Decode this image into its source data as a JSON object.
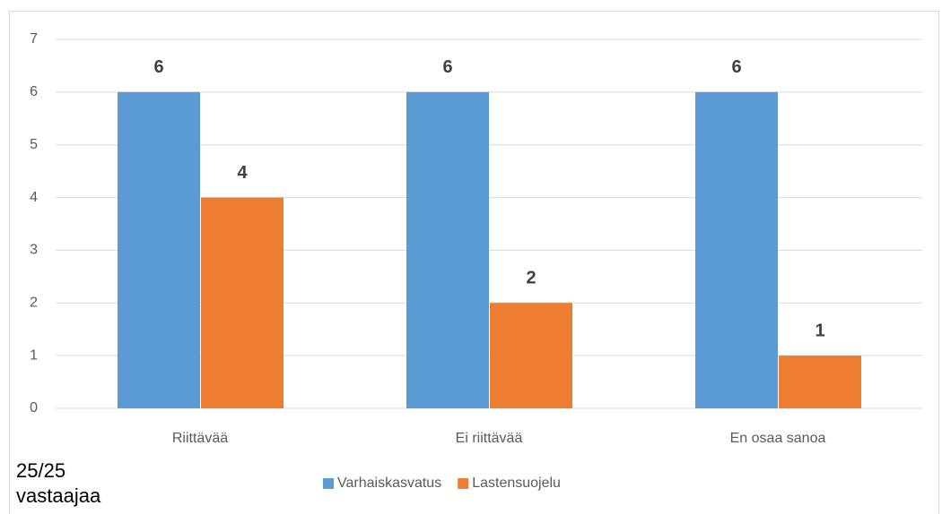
{
  "chart_data": {
    "type": "bar",
    "categories": [
      "Riittävää",
      "Ei riittävää",
      "En osaa sanoa"
    ],
    "series": [
      {
        "name": "Varhaiskasvatus",
        "color": "#5b9bd5",
        "values": [
          6,
          6,
          6
        ]
      },
      {
        "name": "Lastensuojelu",
        "color": "#ed7d31",
        "values": [
          4,
          2,
          1
        ]
      }
    ],
    "ylim": [
      0,
      7
    ],
    "yticks": [
      0,
      1,
      2,
      3,
      4,
      5,
      6,
      7
    ],
    "grid": true,
    "legend": "bottom",
    "annotation": "25/25 vastaajaa"
  }
}
